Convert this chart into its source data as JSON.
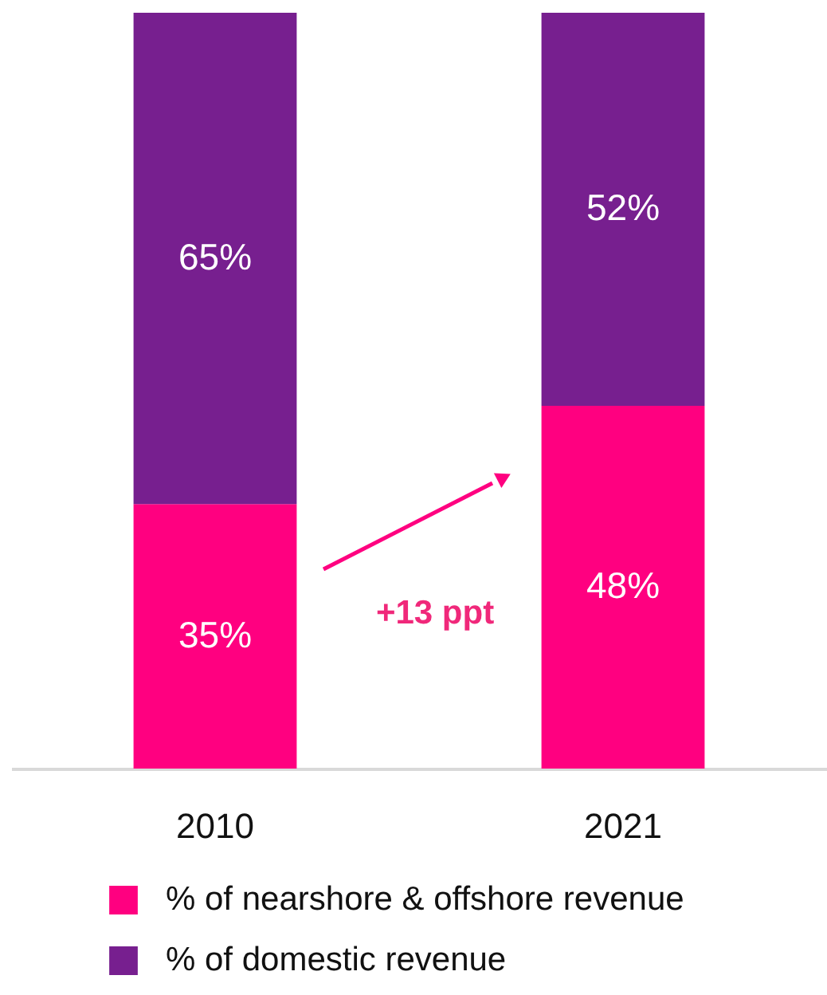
{
  "chart_data": {
    "type": "bar",
    "stacked": true,
    "categories": [
      "2010",
      "2021"
    ],
    "series": [
      {
        "name": "% of nearshore & offshore revenue",
        "color": "#ff0080",
        "values": [
          35,
          48
        ],
        "value_labels": [
          "35%",
          "48%"
        ]
      },
      {
        "name": "% of domestic revenue",
        "color": "#771f8f",
        "values": [
          65,
          52
        ],
        "value_labels": [
          "65%",
          "52%"
        ]
      }
    ],
    "ylim": [
      0,
      100
    ],
    "tick_labels": "x",
    "grid": false,
    "legend": "bottom left",
    "annotations": [
      "+13 ppt"
    ]
  }
}
